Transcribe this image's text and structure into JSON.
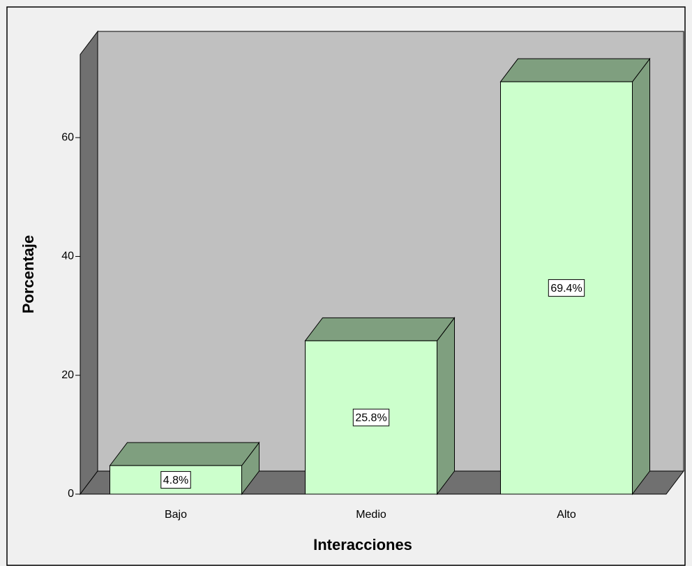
{
  "chart_data": {
    "type": "bar3d",
    "x_label": "Interacciones",
    "y_label": "Porcentaje",
    "categories": [
      "Bajo",
      "Medio",
      "Alto"
    ],
    "values": [
      4.8,
      25.8,
      69.4
    ],
    "value_labels": [
      "4.8%",
      "25.8%",
      "69.4%"
    ],
    "color": "#ccffcc",
    "shade_color": "#7f9f7f",
    "ylim": [
      0,
      74
    ],
    "yticks": [
      0,
      20,
      40,
      60
    ]
  }
}
